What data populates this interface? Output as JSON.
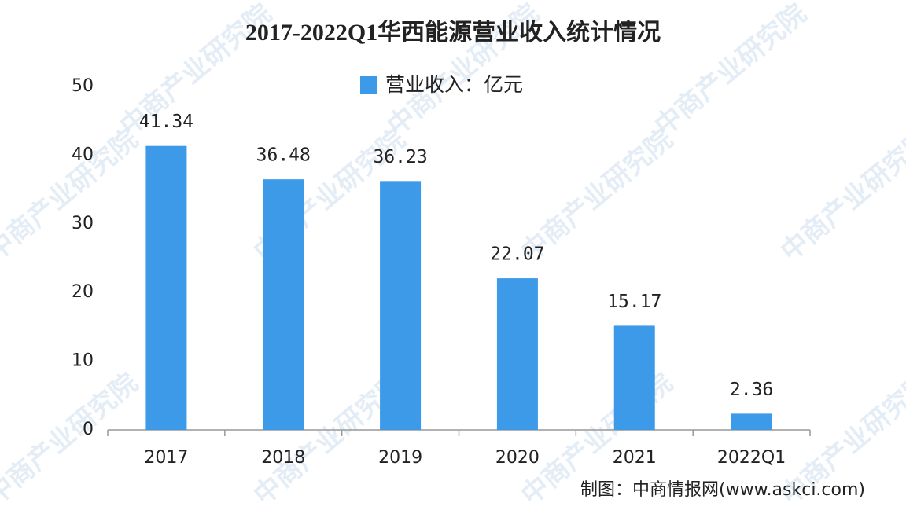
{
  "chart_data": {
    "type": "bar",
    "title": "2017-2022Q1华西能源营业收入统计情况",
    "categories": [
      "2017",
      "2018",
      "2019",
      "2020",
      "2021",
      "2022Q1"
    ],
    "series": [
      {
        "name": "营业收入：亿元",
        "color": "#3d9ae8",
        "values": [
          41.34,
          36.48,
          36.23,
          22.07,
          15.17,
          2.36
        ]
      }
    ],
    "ylim": [
      0,
      50
    ],
    "yticks": [
      0,
      10,
      20,
      30,
      40,
      50
    ],
    "source": "制图：中商情报网(www.askci.com)",
    "watermark": "中商产业研究院"
  }
}
